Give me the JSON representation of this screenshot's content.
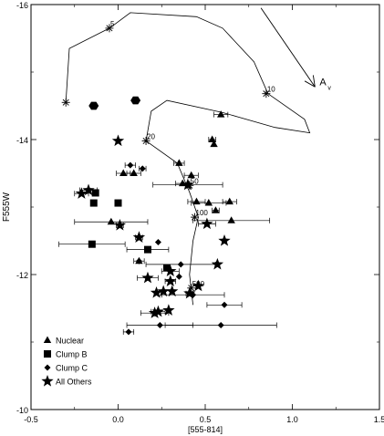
{
  "chart_data": {
    "type": "scatter",
    "title": "",
    "xlabel": "[555-814]",
    "ylabel": "F555W",
    "xlim": [
      -0.5,
      1.5
    ],
    "ylim": [
      -10,
      -16
    ],
    "y_inverted": true,
    "grid": false,
    "legend_position": "bottom-left",
    "xticks": [
      {
        "value": -0.5,
        "label": "-0.5"
      },
      {
        "value": 0.0,
        "label": "0.0"
      },
      {
        "value": 0.5,
        "label": "0.5"
      },
      {
        "value": 1.0,
        "label": "1.0"
      },
      {
        "value": 1.5,
        "label": "1.5"
      }
    ],
    "yticks": [
      {
        "value": -10,
        "label": "-10"
      },
      {
        "value": -12,
        "label": "-12"
      },
      {
        "value": -14,
        "label": "-14"
      },
      {
        "value": -16,
        "label": "-16"
      }
    ],
    "series": [
      {
        "name": "Nuclear",
        "marker": "triangle",
        "points": [
          {
            "x": 0.59,
            "y": -14.37,
            "xerr": 0.04
          },
          {
            "x": 0.54,
            "y": -14.0,
            "xerr": 0.02
          },
          {
            "x": 0.55,
            "y": -13.93,
            "xerr": 0.0
          },
          {
            "x": 0.35,
            "y": -13.65,
            "xerr": 0.03
          },
          {
            "x": 0.03,
            "y": -13.5,
            "xerr": 0.04
          },
          {
            "x": 0.09,
            "y": -13.5,
            "xerr": 0.04
          },
          {
            "x": 0.42,
            "y": -13.47,
            "xerr": 0.04
          },
          {
            "x": 0.37,
            "y": -13.35,
            "xerr": 0.04
          },
          {
            "x": 0.45,
            "y": -13.08,
            "xerr": 0.05
          },
          {
            "x": 0.52,
            "y": -13.06,
            "xerr": 0.1
          },
          {
            "x": 0.64,
            "y": -13.08,
            "xerr": 0.04
          },
          {
            "x": 0.56,
            "y": -12.95,
            "xerr": 0.02
          },
          {
            "x": -0.04,
            "y": -12.78,
            "xerr": 0.21
          },
          {
            "x": 0.65,
            "y": -12.8,
            "xerr": 0.22
          },
          {
            "x": 0.12,
            "y": -12.2,
            "xerr": 0.03
          }
        ]
      },
      {
        "name": "Clump B",
        "marker": "square",
        "points": [
          {
            "x": -0.13,
            "y": -13.21,
            "xerr": 0.0
          },
          {
            "x": -0.14,
            "y": -13.06,
            "xerr": 0.0
          },
          {
            "x": 0.0,
            "y": -13.06,
            "xerr": 0.0
          },
          {
            "x": -0.15,
            "y": -12.45,
            "xerr": 0.19
          },
          {
            "x": 0.17,
            "y": -12.37,
            "xerr": 0.12
          },
          {
            "x": 0.28,
            "y": -12.1,
            "xerr": 0.0
          }
        ]
      },
      {
        "name": "Clump C",
        "marker": "diamond",
        "points": [
          {
            "x": 0.07,
            "y": -13.62,
            "xerr": 0.03
          },
          {
            "x": 0.14,
            "y": -13.57,
            "xerr": 0.02
          },
          {
            "x": 0.23,
            "y": -12.48,
            "xerr": 0.0
          },
          {
            "x": 0.12,
            "y": -12.2,
            "xerr": 0.0
          },
          {
            "x": 0.36,
            "y": -12.15,
            "xerr": 0.2
          },
          {
            "x": 0.35,
            "y": -11.97,
            "xerr": 0.0
          },
          {
            "x": 0.43,
            "y": -11.7,
            "xerr": 0.18
          },
          {
            "x": 0.61,
            "y": -11.55,
            "xerr": 0.1
          },
          {
            "x": 0.24,
            "y": -11.25,
            "xerr": 0.19
          },
          {
            "x": 0.59,
            "y": -11.25,
            "xerr": 0.32
          },
          {
            "x": 0.06,
            "y": -11.15,
            "xerr": 0.03
          }
        ]
      },
      {
        "name": "All Others",
        "marker": "star",
        "points": [
          {
            "x": 0.0,
            "y": -13.98,
            "xerr": 0.0
          },
          {
            "x": -0.21,
            "y": -13.2,
            "xerr": 0.04
          },
          {
            "x": -0.17,
            "y": -13.25,
            "xerr": 0.05
          },
          {
            "x": 0.4,
            "y": -13.33,
            "xerr": 0.2
          },
          {
            "x": 0.01,
            "y": -12.73,
            "xerr": 0.02
          },
          {
            "x": 0.51,
            "y": -12.75,
            "xerr": 0.05
          },
          {
            "x": 0.12,
            "y": -12.55,
            "xerr": 0.02
          },
          {
            "x": 0.61,
            "y": -12.5,
            "xerr": 0.0
          },
          {
            "x": 0.3,
            "y": -12.05,
            "xerr": 0.05
          },
          {
            "x": 0.57,
            "y": -12.15,
            "xerr": 0.0
          },
          {
            "x": 0.17,
            "y": -11.95,
            "xerr": 0.06
          },
          {
            "x": 0.3,
            "y": -11.9,
            "xerr": 0.03
          },
          {
            "x": 0.46,
            "y": -11.83,
            "xerr": 0.0
          },
          {
            "x": 0.22,
            "y": -11.73,
            "xerr": 0.0
          },
          {
            "x": 0.26,
            "y": -11.75,
            "xerr": 0.0
          },
          {
            "x": 0.31,
            "y": -11.75,
            "xerr": 0.0
          },
          {
            "x": 0.41,
            "y": -11.72,
            "xerr": 0.02
          },
          {
            "x": 0.23,
            "y": -11.45,
            "xerr": 0.04
          },
          {
            "x": 0.29,
            "y": -11.47,
            "xerr": 0.0
          },
          {
            "x": 0.21,
            "y": -11.43,
            "xerr": 0.08
          }
        ]
      }
    ],
    "tracks": [
      {
        "points": [
          {
            "x": -0.3,
            "y": -14.55
          },
          {
            "x": -0.28,
            "y": -15.35
          },
          {
            "x": -0.05,
            "y": -15.65
          },
          {
            "x": 0.07,
            "y": -15.88
          },
          {
            "x": 0.45,
            "y": -15.82
          },
          {
            "x": 0.6,
            "y": -15.65
          },
          {
            "x": 0.78,
            "y": -15.15
          },
          {
            "x": 0.86,
            "y": -14.68
          }
        ]
      },
      {
        "points": [
          {
            "x": 0.86,
            "y": -14.68
          },
          {
            "x": 1.07,
            "y": -14.3
          },
          {
            "x": 1.1,
            "y": -14.1
          },
          {
            "x": 0.9,
            "y": -14.18
          },
          {
            "x": 0.6,
            "y": -14.4
          },
          {
            "x": 0.28,
            "y": -14.58
          },
          {
            "x": 0.19,
            "y": -14.42
          },
          {
            "x": 0.16,
            "y": -13.98
          },
          {
            "x": 0.34,
            "y": -13.65
          },
          {
            "x": 0.41,
            "y": -13.22
          },
          {
            "x": 0.46,
            "y": -12.85
          },
          {
            "x": 0.43,
            "y": -12.5
          },
          {
            "x": 0.41,
            "y": -12.0
          },
          {
            "x": 0.43,
            "y": -11.55
          }
        ]
      }
    ],
    "track_markers": [
      {
        "x": -0.3,
        "y": -14.55,
        "label": ""
      },
      {
        "x": -0.05,
        "y": -15.65,
        "label": "5"
      },
      {
        "x": 0.85,
        "y": -14.68,
        "label": "10"
      },
      {
        "x": 0.16,
        "y": -13.98,
        "label": "20"
      },
      {
        "x": 0.41,
        "y": -13.32,
        "label": "50"
      },
      {
        "x": 0.44,
        "y": -12.85,
        "label": "100"
      },
      {
        "x": 0.42,
        "y": -11.8,
        "label": "500"
      }
    ],
    "hexagons": [
      {
        "x": -0.14,
        "y": -14.5
      },
      {
        "x": 0.1,
        "y": -14.58
      }
    ],
    "reddening_vector": {
      "label": "A",
      "subscript": "v",
      "from": {
        "x": 0.82,
        "y": -15.95
      },
      "to": {
        "x": 1.13,
        "y": -14.78
      }
    }
  }
}
